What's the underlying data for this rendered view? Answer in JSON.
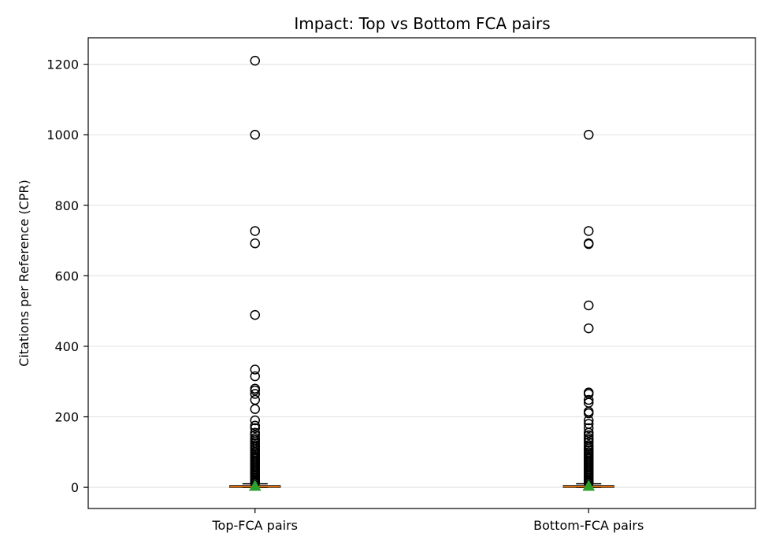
{
  "chart_data": {
    "type": "box",
    "title": "Impact: Top vs Bottom FCA pairs",
    "xlabel": "",
    "ylabel": "Citations per Reference (CPR)",
    "ylim": [
      -60,
      1275
    ],
    "yticks": [
      0,
      200,
      400,
      600,
      800,
      1000,
      1200
    ],
    "grid": "y",
    "categories": [
      "Top-FCA pairs",
      "Bottom-FCA pairs"
    ],
    "boxes": [
      {
        "name": "Top-FCA pairs",
        "whisker_low": 0,
        "q1": 0,
        "median": 2,
        "q3": 5,
        "whisker_high": 10,
        "mean": 3,
        "outliers": [
          1210,
          1000,
          727,
          692,
          489,
          334,
          315,
          280,
          275,
          265,
          248,
          222,
          190,
          175,
          168,
          155,
          148,
          140,
          135,
          130,
          125,
          120,
          115,
          110,
          105,
          100,
          96,
          92,
          88,
          84,
          80,
          76,
          72,
          68,
          64,
          60,
          56,
          52,
          48,
          44,
          40,
          36,
          32,
          28,
          24,
          20,
          17,
          14,
          12
        ]
      },
      {
        "name": "Bottom-FCA pairs",
        "whisker_low": 0,
        "q1": 0,
        "median": 2,
        "q3": 5,
        "whisker_high": 10,
        "mean": 3,
        "outliers": [
          1000,
          727,
          692,
          690,
          516,
          451,
          269,
          265,
          248,
          240,
          215,
          210,
          190,
          180,
          168,
          155,
          148,
          140,
          135,
          128,
          120,
          115,
          110,
          105,
          100,
          96,
          92,
          88,
          84,
          80,
          76,
          72,
          68,
          64,
          60,
          56,
          52,
          48,
          44,
          40,
          36,
          32,
          28,
          24,
          20,
          17,
          14,
          12
        ]
      }
    ],
    "colors": {
      "median": "#ff7f0e",
      "mean_marker": "#2ca02c",
      "grid": "#e6e6e6",
      "frame": "#000000"
    }
  }
}
